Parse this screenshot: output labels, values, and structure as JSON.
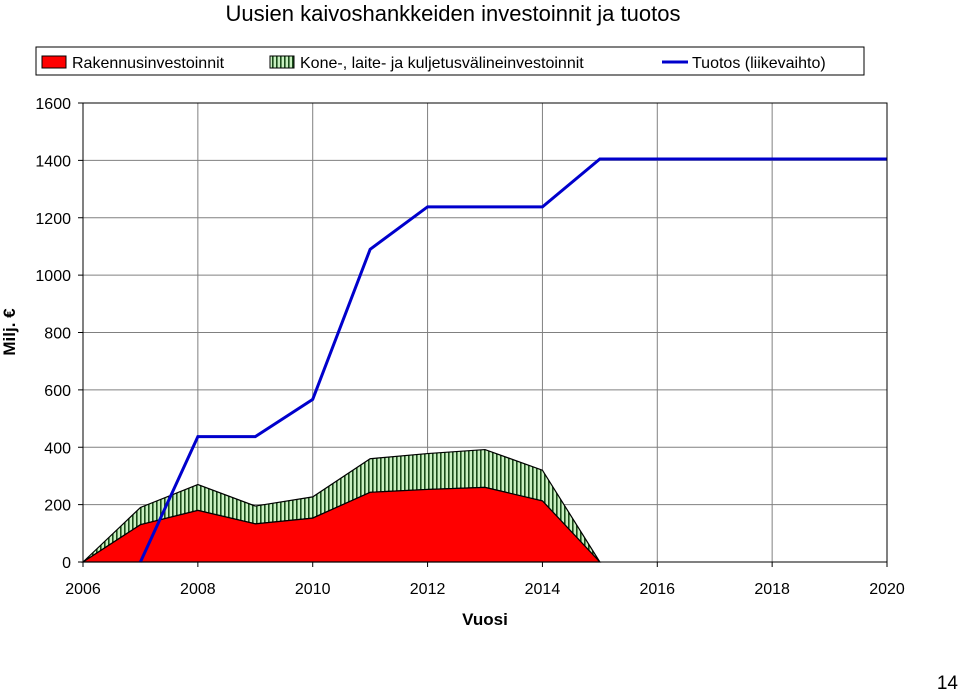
{
  "page_number": "14",
  "colors": {
    "construction": "#ff0000",
    "equipment": "#c8f0c0",
    "equipment_stripe": "#1a4d1a",
    "revenue": "#0000cc",
    "grid": "#808080"
  },
  "chart_data": {
    "type": "area",
    "title": "Uusien kaivoshankkeiden investoinnit ja tuotos",
    "xlabel": "Vuosi",
    "ylabel": "Milj. €",
    "xlim": [
      2006,
      2020
    ],
    "ylim": [
      0,
      1600
    ],
    "xticks": [
      "2006",
      "2008",
      "2010",
      "2012",
      "2014",
      "2016",
      "2018",
      "2020"
    ],
    "yticks": [
      "0",
      "200",
      "400",
      "600",
      "800",
      "1000",
      "1200",
      "1400",
      "1600"
    ],
    "grid": true,
    "legend_position": "top",
    "x": [
      2006,
      2007,
      2008,
      2009,
      2010,
      2011,
      2012,
      2013,
      2014,
      2015
    ],
    "series": [
      {
        "name": "Rakennusinvestoinnit",
        "type": "stacked-area",
        "values": [
          0,
          130,
          180,
          133,
          153,
          243,
          253,
          260,
          213,
          0
        ]
      },
      {
        "name": "Kone-, laite- ja kuljetusvälineinvestoinnit",
        "type": "stacked-area",
        "values": [
          0,
          60,
          90,
          62,
          74,
          117,
          125,
          132,
          107,
          0
        ]
      },
      {
        "name": "Tuotos (liikevaihto)",
        "type": "line",
        "x": [
          2007,
          2008,
          2009,
          2010,
          2011,
          2012,
          2013,
          2014,
          2015,
          2016,
          2017,
          2018,
          2019,
          2020
        ],
        "values": [
          0,
          437,
          437,
          567,
          1090,
          1238,
          1238,
          1238,
          1405,
          1405,
          1405,
          1405,
          1405,
          1405
        ]
      }
    ]
  }
}
